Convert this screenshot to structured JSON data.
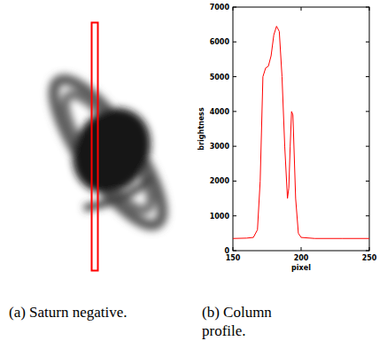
{
  "image_panel": {
    "caption": "(a) Saturn negative."
  },
  "chart_data": {
    "type": "line",
    "title": "(b) Column profile.",
    "x_label": "pixel",
    "y_label": "brightness",
    "x": [
      150,
      160,
      165,
      168,
      170,
      172,
      174,
      176,
      178,
      180,
      182,
      184,
      186,
      188,
      190,
      191,
      192,
      193,
      194,
      196,
      198,
      200,
      210,
      230,
      250
    ],
    "values": [
      350,
      360,
      380,
      600,
      2000,
      5000,
      5250,
      5300,
      5600,
      6200,
      6450,
      6300,
      5000,
      3000,
      1500,
      1800,
      3000,
      4000,
      3900,
      1500,
      500,
      380,
      350,
      350,
      350
    ],
    "color": "#ff0000",
    "xlim": [
      150,
      250
    ],
    "xticks": [
      150,
      200,
      250
    ],
    "ylim": [
      0,
      7000
    ],
    "yticks": [
      0,
      1000,
      2000,
      3000,
      4000,
      5000,
      6000,
      7000
    ],
    "grid": false
  }
}
